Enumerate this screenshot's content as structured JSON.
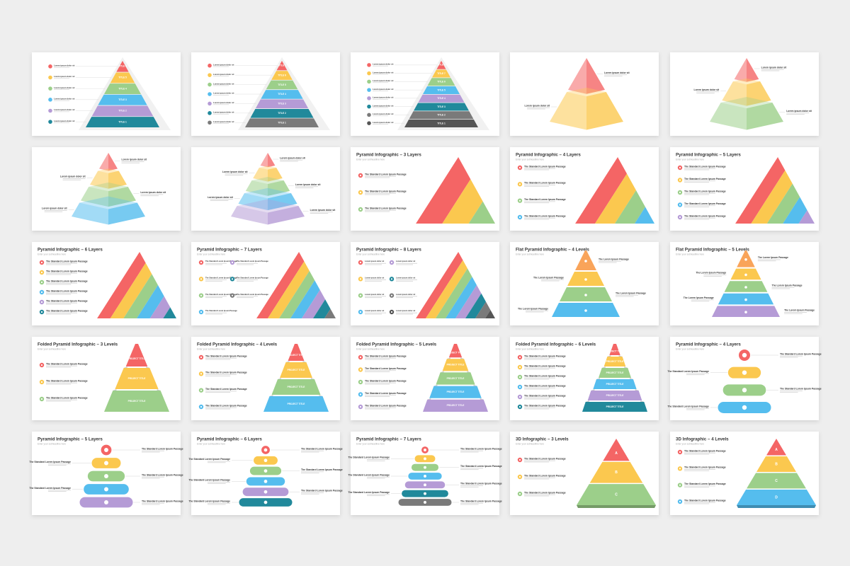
{
  "slides": [
    {
      "kind": "stepped",
      "labels": [
        "TITLE 6",
        "TITLE 5",
        "TITLE 4",
        "TITLE 3",
        "TITLE 2",
        "TITLE 1"
      ],
      "items": [
        "Lorem ipsum dolor sit",
        "Lorem ipsum dolor sit",
        "Lorem ipsum dolor sit",
        "Lorem ipsum dolor sit",
        "Lorem ipsum dolor sit",
        "Lorem ipsum dolor sit"
      ]
    },
    {
      "kind": "stepped",
      "labels": [
        "TITLE 7",
        "TITLE 6",
        "TITLE 5",
        "TITLE 4",
        "TITLE 3",
        "TITLE 2",
        "TITLE 1"
      ],
      "items": [
        "Lorem ipsum dolor sit",
        "Lorem ipsum dolor sit",
        "Lorem ipsum dolor sit",
        "Lorem ipsum dolor sit",
        "Lorem ipsum dolor sit",
        "Lorem ipsum dolor sit",
        "Lorem ipsum dolor sit"
      ]
    },
    {
      "kind": "stepped",
      "labels": [
        "TITLE 8",
        "TITLE 7",
        "TITLE 6",
        "TITLE 5",
        "TITLE 4",
        "TITLE 3",
        "TITLE 2",
        "TITLE 1"
      ],
      "items": [
        "Lorem ipsum dolor sit",
        "Lorem ipsum dolor sit",
        "Lorem ipsum dolor sit",
        "Lorem ipsum dolor sit",
        "Lorem ipsum dolor sit",
        "Lorem ipsum dolor sit",
        "Lorem ipsum dolor sit",
        "Lorem ipsum dolor sit"
      ]
    },
    {
      "kind": "solid3d",
      "items": [
        "Lorem ipsum dolor sit",
        "Lorem ipsum dolor sit"
      ]
    },
    {
      "kind": "solid3d",
      "items": [
        "Lorem ipsum dolor sit",
        "Lorem ipsum dolor sit",
        "Lorem ipsum dolor sit"
      ]
    },
    {
      "kind": "solid3d",
      "items": [
        "Lorem ipsum dolor sit",
        "Lorem ipsum dolor sit",
        "Lorem ipsum dolor sit",
        "Lorem ipsum dolor sit"
      ]
    },
    {
      "kind": "solid3d",
      "items": [
        "Lorem ipsum dolor sit",
        "Lorem ipsum dolor sit",
        "Lorem ipsum dolor sit",
        "Lorem ipsum dolor sit",
        "Lorem ipsum dolor sit"
      ]
    },
    {
      "kind": "striped",
      "title": "Pyramid Infographic – 3 Layers",
      "subtitle": "Enter your subheadline here",
      "items": [
        "The Standard Lorem Ipsum Passage",
        "The Standard Lorem Ipsum Passage",
        "The Standard Lorem Ipsum Passage"
      ]
    },
    {
      "kind": "striped",
      "title": "Pyramid Infographic – 4 Layers",
      "subtitle": "Enter your subheadline here",
      "items": [
        "The Standard Lorem Ipsum Passage",
        "The Standard Lorem Ipsum Passage",
        "The Standard Lorem Ipsum Passage",
        "The Standard Lorem Ipsum Passage"
      ]
    },
    {
      "kind": "striped",
      "title": "Pyramid Infographic – 5 Layers",
      "subtitle": "Enter your subheadline here",
      "items": [
        "The Standard Lorem Ipsum Passage",
        "The Standard Lorem Ipsum Passage",
        "The Standard Lorem Ipsum Passage",
        "The Standard Lorem Ipsum Passage",
        "The Standard Lorem Ipsum Passage"
      ]
    },
    {
      "kind": "striped",
      "title": "Pyramid Infographic – 6 Layers",
      "subtitle": "Enter your subheadline here",
      "items": [
        "The Standard Lorem Ipsum Passage",
        "The Standard Lorem Ipsum Passage",
        "The Standard Lorem Ipsum Passage",
        "The Standard Lorem Ipsum Passage",
        "The Standard Lorem Ipsum Passage",
        "The Standard Lorem Ipsum Passage"
      ]
    },
    {
      "kind": "striped",
      "title": "Pyramid Infographic – 7 Layers",
      "subtitle": "Enter your subheadline here",
      "items": [
        "The Standard Lorem Ipsum Passage",
        "The Standard Lorem Ipsum Passage",
        "The Standard Lorem Ipsum Passage",
        "The Standard Lorem Ipsum Passage",
        "The Standard Lorem Ipsum Passage",
        "The Standard Lorem Ipsum Passage",
        "The Standard Lorem Ipsum Passage"
      ]
    },
    {
      "kind": "striped",
      "title": "Pyramid Infographic – 8 Layers",
      "subtitle": "Enter your subheadline here",
      "items": [
        "Lorem ipsum dolor sit",
        "Lorem ipsum dolor sit",
        "Lorem ipsum dolor sit",
        "Lorem ipsum dolor sit",
        "Lorem ipsum dolor sit",
        "Lorem ipsum dolor sit",
        "Lorem ipsum dolor sit",
        "Lorem ipsum dolor sit"
      ]
    },
    {
      "kind": "flat",
      "title": "Flat Pyramid Infographic – 4 Levels",
      "subtitle": "Enter your subheadline here",
      "items": [
        "The Lorem Ipsum Passage",
        "The Lorem Ipsum Passage",
        "The Lorem Ipsum Passage",
        "The Lorem Ipsum Passage"
      ]
    },
    {
      "kind": "flat",
      "title": "Flat Pyramid Infographic – 5 Levels",
      "subtitle": "Enter your subheadline here",
      "items": [
        "The Lorem Ipsum Passage",
        "The Lorem Ipsum Passage",
        "The Lorem Ipsum Passage",
        "The Lorem Ipsum Passage",
        "The Lorem Ipsum Passage"
      ]
    },
    {
      "kind": "folded",
      "title": "Folded Pyramid Infographic – 3 Levels",
      "subtitle": "Enter your subheadline here",
      "labels": [
        "PROJECT TITLE",
        "PROJECT TITLE",
        "PROJECT TITLE"
      ],
      "items": [
        "The Standard Lorem Ipsum Passage",
        "The Standard Lorem Ipsum Passage",
        "The Standard Lorem Ipsum Passage"
      ]
    },
    {
      "kind": "folded",
      "title": "Folded Pyramid Infographic – 4 Levels",
      "subtitle": "Enter your subheadline here",
      "labels": [
        "PROJECT TITLE",
        "PROJECT TITLE",
        "PROJECT TITLE",
        "PROJECT TITLE"
      ],
      "items": [
        "The Standard Lorem Ipsum Passage",
        "The Standard Lorem Ipsum Passage",
        "The Standard Lorem Ipsum Passage",
        "The Standard Lorem Ipsum Passage"
      ]
    },
    {
      "kind": "folded",
      "title": "Folded Pyramid Infographic – 5 Levels",
      "subtitle": "Enter your subheadline here",
      "labels": [
        "PROJECT TITLE",
        "PROJECT TITLE",
        "PROJECT TITLE",
        "PROJECT TITLE",
        "PROJECT TITLE"
      ],
      "items": [
        "The Standard Lorem Ipsum Passage",
        "The Standard Lorem Ipsum Passage",
        "The Standard Lorem Ipsum Passage",
        "The Standard Lorem Ipsum Passage",
        "The Standard Lorem Ipsum Passage"
      ]
    },
    {
      "kind": "folded",
      "title": "Folded Pyramid Infographic – 6 Levels",
      "subtitle": "Enter your subheadline here",
      "labels": [
        "PROJECT TITLE",
        "PROJECT TITLE",
        "PROJECT TITLE",
        "PROJECT TITLE",
        "PROJECT TITLE",
        "PROJECT TITLE"
      ],
      "items": [
        "The Standard Lorem Ipsum Passage",
        "The Standard Lorem Ipsum Passage",
        "The Standard Lorem Ipsum Passage",
        "The Standard Lorem Ipsum Passage",
        "The Standard Lorem Ipsum Passage",
        "The Standard Lorem Ipsum Passage"
      ]
    },
    {
      "kind": "pills",
      "title": "Pyramid Infographic – 4 Layers",
      "subtitle": "Enter your subheadline here",
      "items": [
        "The Standard Lorem Ipsum Passage",
        "The Standard Lorem Ipsum Passage",
        "The Standard Lorem Ipsum Passage",
        "The Standard Lorem Ipsum Passage"
      ]
    },
    {
      "kind": "pills",
      "title": "Pyramid Infographic – 5 Layers",
      "subtitle": "Enter your subheadline here",
      "items": [
        "The Standard Lorem Ipsum Passage",
        "The Standard Lorem Ipsum Passage",
        "The Standard Lorem Ipsum Passage",
        "The Standard Lorem Ipsum Passage",
        "The Standard Lorem Ipsum Passage"
      ]
    },
    {
      "kind": "pills",
      "title": "Pyramid Infographic – 6 Layers",
      "subtitle": "Enter your subheadline here",
      "items": [
        "The Standard Lorem Ipsum Passage",
        "The Standard Lorem Ipsum Passage",
        "The Standard Lorem Ipsum Passage",
        "The Standard Lorem Ipsum Passage",
        "The Standard Lorem Ipsum Passage",
        "The Standard Lorem Ipsum Passage"
      ]
    },
    {
      "kind": "pills",
      "title": "Pyramid Infographic – 7 Layers",
      "subtitle": "Enter your subheadline here",
      "items": [
        "The Standard Lorem Ipsum Passage",
        "The Standard Lorem Ipsum Passage",
        "The Standard Lorem Ipsum Passage",
        "The Standard Lorem Ipsum Passage",
        "The Standard Lorem Ipsum Passage",
        "The Standard Lorem Ipsum Passage",
        "The Standard Lorem Ipsum Passage"
      ]
    },
    {
      "kind": "lettered",
      "title": "3D Infographic – 3 Levels",
      "subtitle": "Enter your subheadline here",
      "labels": [
        "A",
        "B",
        "C"
      ],
      "items": [
        "The Standard Lorem Ipsum Passage",
        "The Standard Lorem Ipsum Passage",
        "The Standard Lorem Ipsum Passage"
      ]
    },
    {
      "kind": "lettered",
      "title": "3D Infographic – 4 Levels",
      "subtitle": "Enter your subheadline here",
      "labels": [
        "A",
        "B",
        "C",
        "D"
      ],
      "items": [
        "The Standard Lorem Ipsum Passage",
        "The Standard Lorem Ipsum Passage",
        "The Standard Lorem Ipsum Passage",
        "The Standard Lorem Ipsum Passage"
      ]
    }
  ]
}
